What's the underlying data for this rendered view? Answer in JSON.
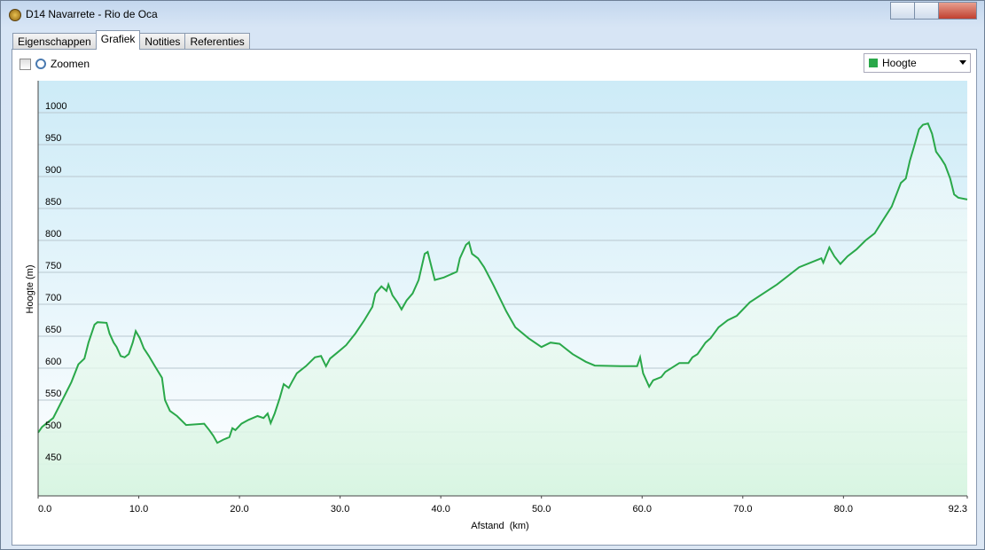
{
  "window": {
    "title": "D14 Navarrete - Rio de Oca"
  },
  "tabs": [
    "Eigenschappen",
    "Grafiek",
    "Notities",
    "Referenties"
  ],
  "zoom_label": "Zoomen",
  "chart_data": {
    "type": "line",
    "xlabel": "Afstand  (km)",
    "ylabel": "Hoogte (m)",
    "xlim": [
      0,
      92.3
    ],
    "ylim": [
      400,
      1050
    ],
    "xticks": [
      {
        "value": 0,
        "label": "0.0"
      },
      {
        "value": 10,
        "label": "10.0"
      },
      {
        "value": 20,
        "label": "20.0"
      },
      {
        "value": 30,
        "label": "30.0"
      },
      {
        "value": 40,
        "label": "40.0"
      },
      {
        "value": 50,
        "label": "50.0"
      },
      {
        "value": 60,
        "label": "60.0"
      },
      {
        "value": 70,
        "label": "70.0"
      },
      {
        "value": 80,
        "label": "80.0"
      },
      92.3
    ],
    "yticks": [
      450,
      500,
      550,
      600,
      650,
      700,
      750,
      800,
      850,
      900,
      950,
      1000
    ],
    "grid": true,
    "x": [
      0,
      0.4,
      1.5,
      2.4,
      3.3,
      4.0,
      4.6,
      5.0,
      5.6,
      5.9,
      6.8,
      7.1,
      7.5,
      7.8,
      8.2,
      8.6,
      9.0,
      9.4,
      9.7,
      10.1,
      10.5,
      11.0,
      11.6,
      12.3,
      12.6,
      13.1,
      13.8,
      14.7,
      16.5,
      17.0,
      17.4,
      17.8,
      18.4,
      19.0,
      19.3,
      19.6,
      20.2,
      20.9,
      21.8,
      22.4,
      22.8,
      23.1,
      23.5,
      24.0,
      24.4,
      24.9,
      25.3,
      25.7,
      26.6,
      27.5,
      28.1,
      28.6,
      29.0,
      29.7,
      30.6,
      31.5,
      32.4,
      33.2,
      33.5,
      34.1,
      34.6,
      34.8,
      35.2,
      35.7,
      36.1,
      36.6,
      37.2,
      37.8,
      38.4,
      38.7,
      39.4,
      40.3,
      41.6,
      41.9,
      42.5,
      42.8,
      43.1,
      43.7,
      44.3,
      45.2,
      46.5,
      47.4,
      48.7,
      50.0,
      50.9,
      51.8,
      53.1,
      54.4,
      55.3,
      57.9,
      59.5,
      59.8,
      60.1,
      60.7,
      61.1,
      61.9,
      62.3,
      63.2,
      63.7,
      64.6,
      65.0,
      65.5,
      66.3,
      66.8,
      67.6,
      68.5,
      69.4,
      70.7,
      73.4,
      75.6,
      77.8,
      78.0,
      78.6,
      79.1,
      79.7,
      80.4,
      81.3,
      82.2,
      83.1,
      83.9,
      84.8,
      85.7,
      86.2,
      86.6,
      87.0,
      87.5,
      87.9,
      88.4,
      88.8,
      89.2,
      89.7,
      90.1,
      90.6,
      91.0,
      91.4,
      92.3
    ],
    "series": [
      {
        "name": "Hoogte",
        "color": "#2aa84a",
        "values": [
          499,
          508,
          522,
          550,
          578,
          606,
          615,
          640,
          668,
          672,
          671,
          654,
          640,
          633,
          619,
          617,
          622,
          640,
          658,
          647,
          631,
          619,
          603,
          585,
          550,
          533,
          525,
          511,
          513,
          503,
          494,
          483,
          488,
          492,
          506,
          503,
          513,
          519,
          525,
          522,
          529,
          514,
          529,
          553,
          575,
          569,
          581,
          592,
          603,
          617,
          619,
          603,
          615,
          624,
          636,
          654,
          675,
          696,
          717,
          728,
          721,
          731,
          714,
          703,
          692,
          706,
          717,
          738,
          779,
          782,
          738,
          742,
          751,
          772,
          793,
          797,
          779,
          772,
          758,
          731,
          689,
          664,
          647,
          633,
          640,
          638,
          622,
          610,
          604,
          603,
          603,
          617,
          592,
          571,
          581,
          586,
          594,
          603,
          608,
          608,
          617,
          622,
          640,
          647,
          664,
          675,
          682,
          703,
          731,
          758,
          772,
          765,
          789,
          775,
          763,
          775,
          786,
          800,
          811,
          831,
          853,
          890,
          897,
          925,
          946,
          974,
          981,
          983,
          967,
          939,
          928,
          918,
          897,
          872,
          867,
          864
        ]
      }
    ]
  }
}
